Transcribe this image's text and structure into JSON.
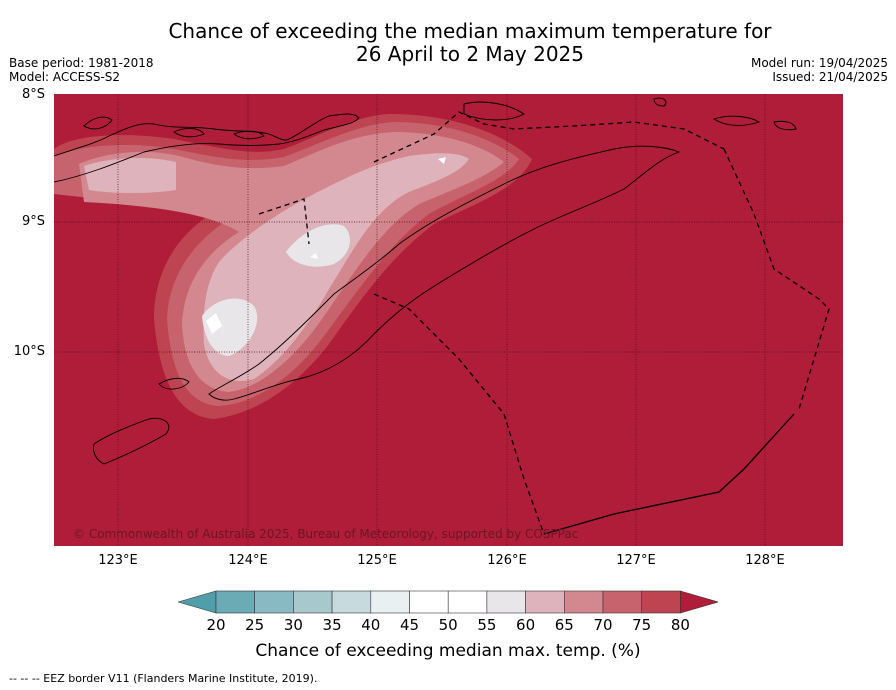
{
  "title_line1": "Chance of exceeding the median maximum temperature for",
  "title_line2": "26 April to 2 May 2025",
  "meta_left": [
    "Base period: 1981-2018",
    "Model: ACCESS-S2"
  ],
  "meta_right": [
    "Model run: 19/04/2025",
    "Issued: 21/04/2025"
  ],
  "lat_labels": [
    "8°S",
    "9°S",
    "10°S"
  ],
  "lon_labels": [
    "123°E",
    "124°E",
    "125°E",
    "126°E",
    "127°E",
    "128°E"
  ],
  "copyright": "© Commonwealth of Australia 2025, Bureau of Meteorology, supported by COSPPac",
  "colorbar": {
    "ticks": [
      "20",
      "25",
      "30",
      "35",
      "40",
      "45",
      "50",
      "55",
      "60",
      "65",
      "70",
      "75",
      "80"
    ],
    "colors": [
      "#4f9ea9",
      "#6aabb6",
      "#87bac3",
      "#a7c9cd",
      "#c7dadd",
      "#e9f0f2",
      "#ffffff",
      "#ffffff",
      "#e8e6e8",
      "#dfb3bb",
      "#d3888f",
      "#c7636d",
      "#bf4452",
      "#b01d39"
    ],
    "label": "Chance of exceeding median max. temp. (%)"
  },
  "footer": "--  --  -- EEZ border V11 (Flanders Marine Institute, 2019).",
  "map": {
    "background_color": "#b01d39",
    "dominant_category": "80"
  }
}
